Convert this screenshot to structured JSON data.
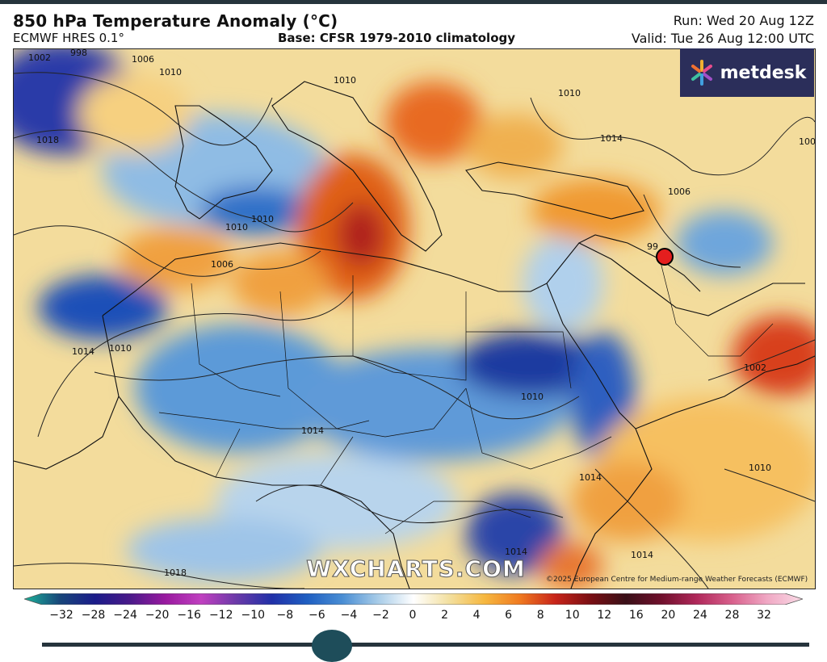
{
  "header": {
    "title": "850 hPa Temperature Anomaly (°C)",
    "model": "ECMWF HRES 0.1°",
    "base": "Base: CFSR 1979-2010 climatology",
    "run": "Run: Wed 20 Aug 12Z",
    "valid": "Valid: Tue 26 Aug 12:00 UTC"
  },
  "logo": {
    "text": "metdesk",
    "icon": "asterisk-logo-icon"
  },
  "watermark": "WXCHARTS.COM",
  "copyright": "©2025 European Centre for Medium-range Weather Forecasts (ECMWF)",
  "isobar_labels": [
    "1002",
    "998",
    "1006",
    "1010",
    "1018",
    "1010",
    "1010",
    "1010",
    "1006",
    "1014",
    "1010",
    "1014",
    "1010",
    "1014",
    "1006",
    "99",
    "1006",
    "1002",
    "1010",
    "1014",
    "1014",
    "1018",
    "1014",
    "1010"
  ],
  "marker": {
    "color": "#e41e1e"
  },
  "colorbar": {
    "ticks": [
      "−32",
      "−28",
      "−24",
      "−20",
      "−16",
      "−12",
      "−10",
      "−8",
      "−6",
      "−4",
      "−2",
      "0",
      "2",
      "4",
      "6",
      "8",
      "10",
      "12",
      "16",
      "20",
      "24",
      "28",
      "32"
    ],
    "colors": [
      "#1bb39a",
      "#18467a",
      "#1b1c8a",
      "#4b1a8a",
      "#9a1aa0",
      "#c040c0",
      "#6a3aa8",
      "#2030a8",
      "#1f5fc2",
      "#4a8ed4",
      "#a8cce8",
      "#ffffff",
      "#f3e0a0",
      "#f6b840",
      "#f07a20",
      "#c8241a",
      "#7a0f14",
      "#3a1018",
      "#70102c",
      "#b0285a",
      "#d8608c",
      "#f0a8c4",
      "#fadbe6"
    ]
  }
}
